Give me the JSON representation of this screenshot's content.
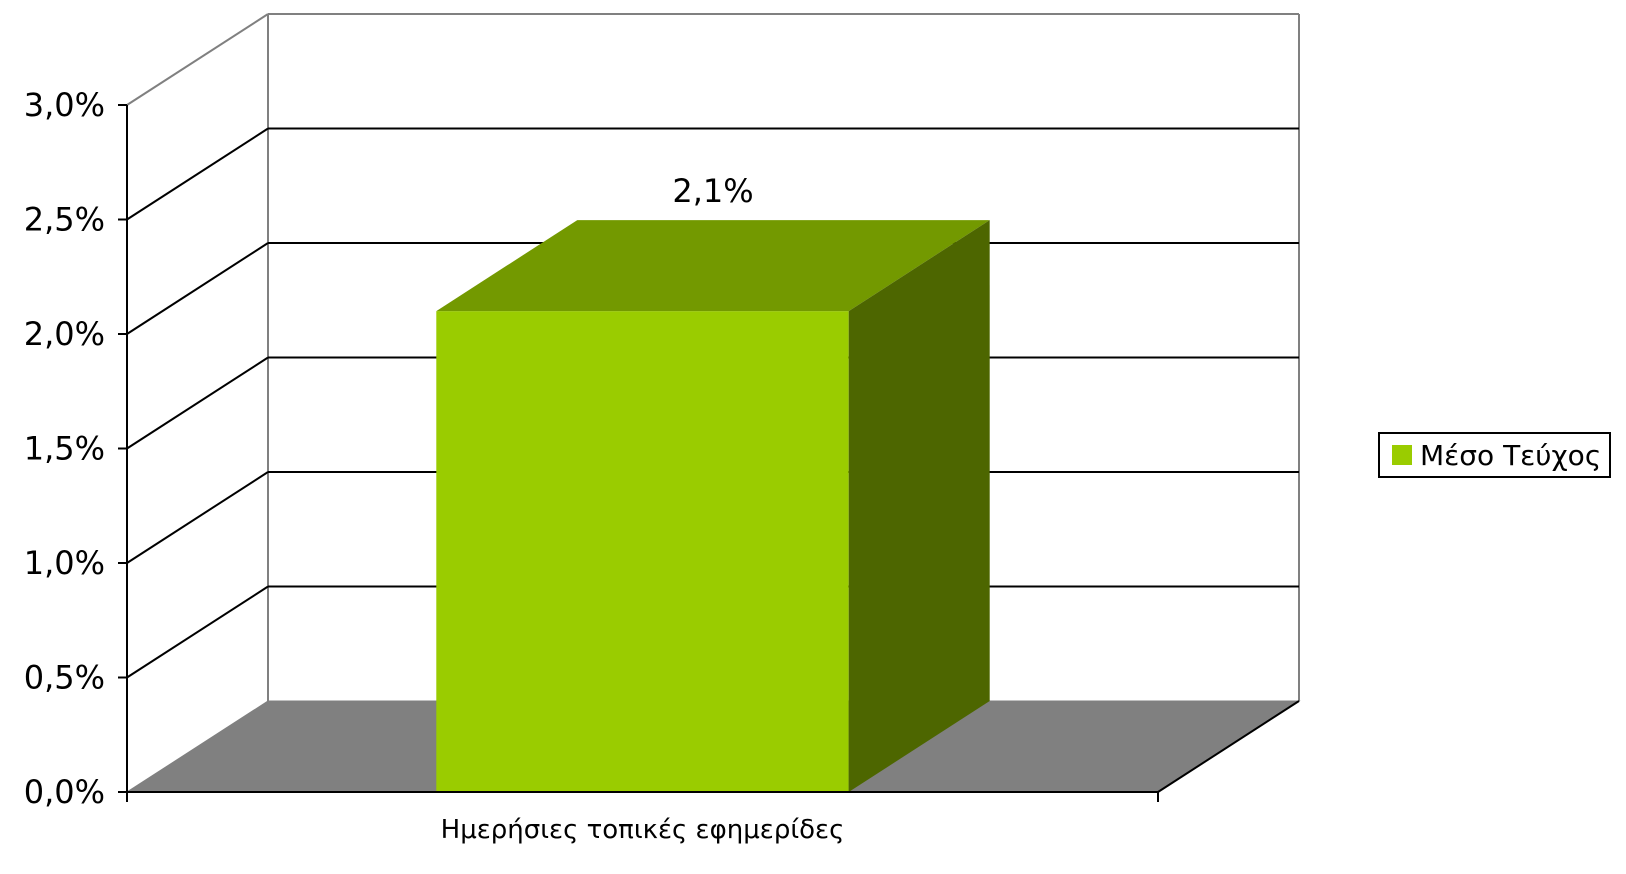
{
  "chart_data": {
    "type": "bar",
    "categories": [
      "Ημερήσιες τοπικές εφημερίδες"
    ],
    "series": [
      {
        "name": "Μέσο Τεύχος",
        "values": [
          2.1
        ],
        "labels": [
          "2,1%"
        ]
      }
    ],
    "title": "",
    "xlabel": "",
    "ylabel": "",
    "ylim": [
      0,
      3
    ],
    "yticks": [
      {
        "value": 0.0,
        "label": "0,0%"
      },
      {
        "value": 0.5,
        "label": "0,5%"
      },
      {
        "value": 1.0,
        "label": "1,0%"
      },
      {
        "value": 1.5,
        "label": "1,5%"
      },
      {
        "value": 2.0,
        "label": "2,0%"
      },
      {
        "value": 2.5,
        "label": "2,5%"
      },
      {
        "value": 3.0,
        "label": "3,0%"
      }
    ],
    "grid": true,
    "three_d": true,
    "legend_position": "right",
    "colors": {
      "bar_front": "#9acc00",
      "bar_top": "#739900",
      "bar_side": "#4d6600",
      "floor": "#808080",
      "grid": "#000000",
      "walls": "#808080"
    }
  }
}
